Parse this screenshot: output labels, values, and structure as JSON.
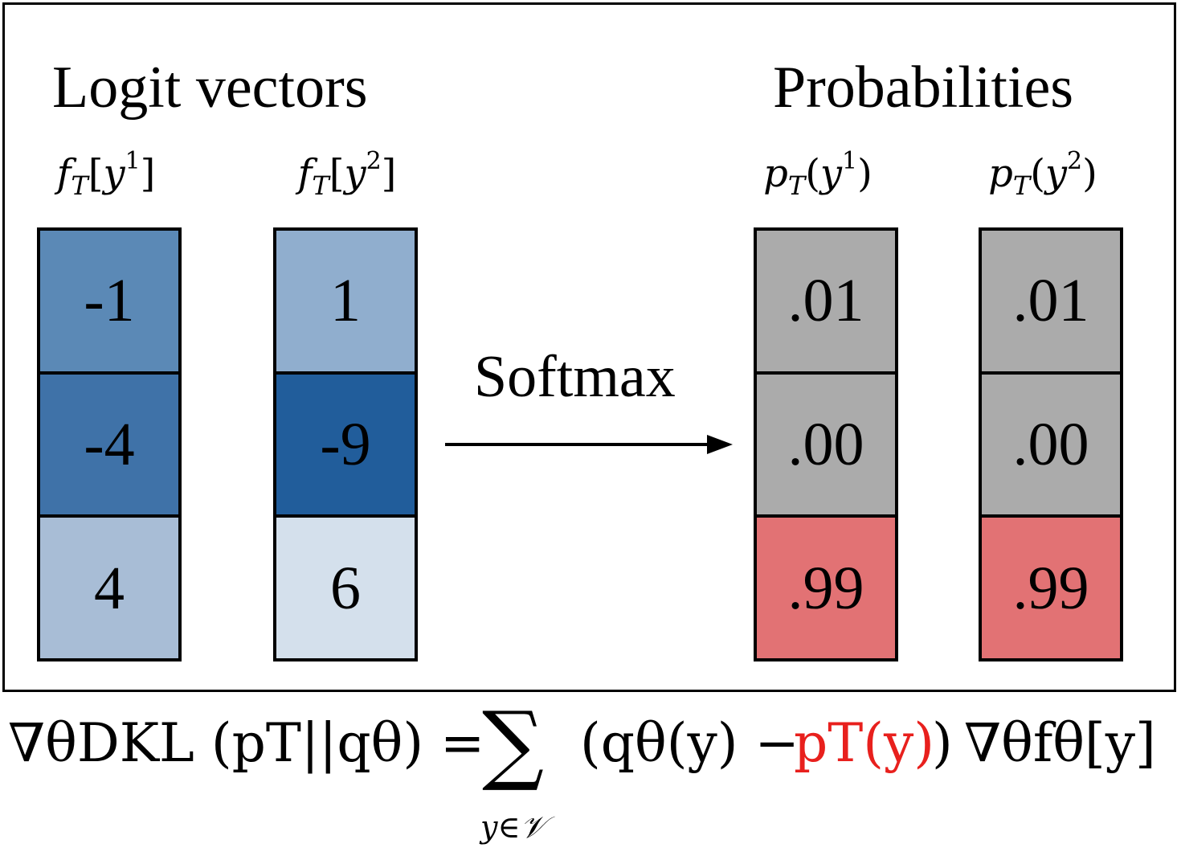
{
  "headings": {
    "logits": "Logit vectors",
    "probabilities": "Probabilities"
  },
  "arrow_label": "Softmax",
  "vectors": [
    {
      "label": {
        "fn": "f",
        "sub": "T",
        "open": "[",
        "var": "y",
        "sup": "1",
        "close": "]"
      },
      "cells": [
        {
          "value": "-1",
          "color": "#5b89b6"
        },
        {
          "value": "-4",
          "color": "#3f72a8"
        },
        {
          "value": "4",
          "color": "#a8bdd6"
        }
      ]
    },
    {
      "label": {
        "fn": "f",
        "sub": "T",
        "open": "[",
        "var": "y",
        "sup": "2",
        "close": "]"
      },
      "cells": [
        {
          "value": "1",
          "color": "#90aece"
        },
        {
          "value": "-9",
          "color": "#215d9b"
        },
        {
          "value": "6",
          "color": "#d4e0ec"
        }
      ]
    },
    {
      "label": {
        "fn": "p",
        "sub": "T",
        "open": "(",
        "var": "y",
        "sup": "1",
        "close": ")"
      },
      "cells": [
        {
          "value": ".01",
          "color": "#ababab"
        },
        {
          "value": ".00",
          "color": "#ababab"
        },
        {
          "value": ".99",
          "color": "#e27274"
        }
      ]
    },
    {
      "label": {
        "fn": "p",
        "sub": "T",
        "open": "(",
        "var": "y",
        "sup": "2",
        "close": ")"
      },
      "cells": [
        {
          "value": ".01",
          "color": "#ababab"
        },
        {
          "value": ".00",
          "color": "#ababab"
        },
        {
          "value": ".99",
          "color": "#e27274"
        }
      ]
    }
  ],
  "formula": {
    "lhs": "∇θDKL (pT||qθ) =",
    "sum_symbol": "∑",
    "sum_index": "y∈𝒱",
    "term_open": "(qθ(y) −",
    "term_red": "pT(y)",
    "term_close": ")",
    "grad_tail": "∇θfθ[y]",
    "highlight_color": "#e8201d"
  }
}
